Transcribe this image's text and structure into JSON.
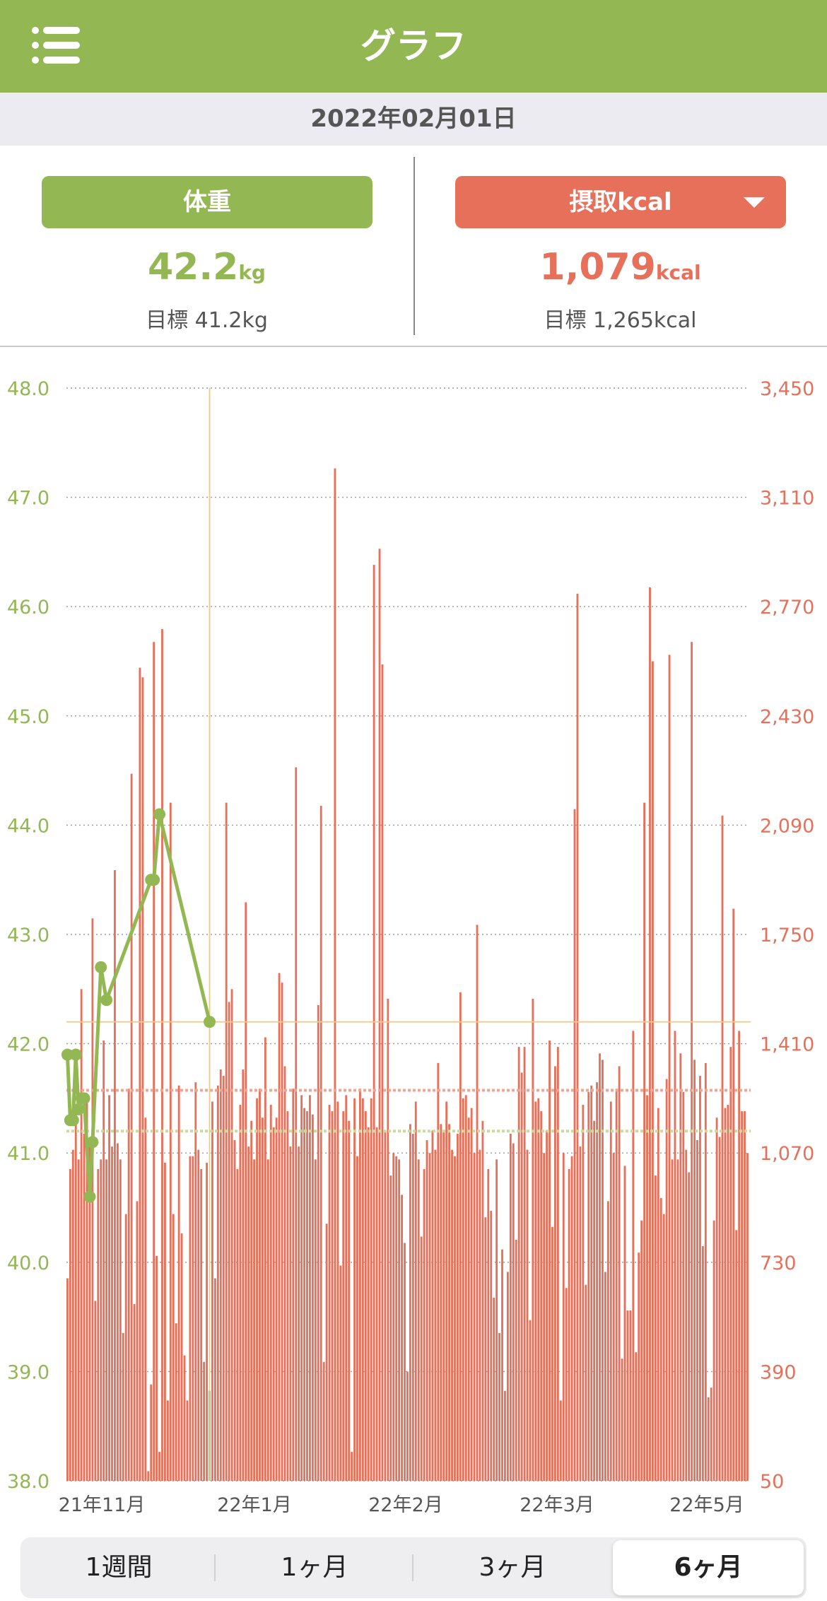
{
  "header": {
    "title": "グラフ",
    "menu_icon": "list-menu-icon"
  },
  "date_label": "2022年02月01日",
  "weight_panel": {
    "button_label": "体重",
    "value": "42.2",
    "unit": "kg",
    "target": "目標 41.2kg",
    "color": "#93b752"
  },
  "intake_panel": {
    "button_label": "摂取kcal",
    "value": "1,079",
    "unit": "kcal",
    "target": "目標 1,265kcal",
    "color": "#e6705a",
    "dropdown_icon": "triangle-down-icon"
  },
  "periods": {
    "items": [
      "1週間",
      "1ヶ月",
      "3ヶ月",
      "6ヶ月"
    ],
    "selected": "6ヶ月"
  },
  "chart_data": {
    "type": "bar+line",
    "left_axis": {
      "ticks": [
        "38.0",
        "39.0",
        "40.0",
        "41.0",
        "42.0",
        "43.0",
        "44.0",
        "45.0",
        "46.0",
        "47.0",
        "48.0"
      ],
      "range": [
        38,
        48
      ],
      "color": "#93b752"
    },
    "right_axis": {
      "ticks": [
        "50",
        "390",
        "730",
        "1,070",
        "1,410",
        "1,750",
        "2,090",
        "2,430",
        "2,770",
        "3,110",
        "3,450"
      ],
      "range": [
        50,
        3450
      ],
      "color": "#e6705a"
    },
    "x_tick_labels": [
      "21年11月",
      "22年1月",
      "22年2月",
      "22年3月",
      "22年5月"
    ],
    "weight_target": 41.2,
    "kcal_target": 1265,
    "selected_date": "2022年02月01日",
    "selected_weight": 42.2,
    "kcal_series": {
      "color": "#e6705a",
      "values": [
        680,
        1020,
        1080,
        1200,
        1050,
        1580,
        1130,
        1250,
        1090,
        1800,
        610,
        1020,
        1050,
        1420,
        1050,
        1250,
        1090,
        1950,
        1100,
        1050,
        510,
        880,
        1270,
        2250,
        600,
        920,
        2580,
        2550,
        1180,
        80,
        350,
        2660,
        750,
        140,
        2700,
        1040,
        300,
        2160,
        880,
        540,
        1280,
        820,
        440,
        300,
        1060,
        1060,
        1290,
        1080,
        1020,
        420,
        1040,
        330,
        1230,
        680,
        1280,
        1330,
        1310,
        2160,
        1540,
        1580,
        1110,
        1020,
        1220,
        1330,
        1850,
        1090,
        1170,
        1050,
        1240,
        1270,
        1180,
        1430,
        1050,
        1220,
        1150,
        1180,
        1630,
        1600,
        1340,
        1200,
        1090,
        1270,
        2270,
        1090,
        1250,
        1210,
        1200,
        1250,
        1190,
        1050,
        1530,
        2150,
        420,
        850,
        1220,
        1200,
        3200,
        1230,
        720,
        1200,
        1250,
        1170,
        140,
        1240,
        1060,
        1270,
        1240,
        1200,
        1150,
        1240,
        2900,
        1150,
        2950,
        2590,
        1140,
        1550,
        1000,
        1070,
        1060,
        1050,
        940,
        790,
        390,
        1160,
        1130,
        1230,
        1050,
        810,
        1020,
        1110,
        1070,
        1140,
        1080,
        1350,
        1160,
        1140,
        1230,
        1160,
        1080,
        1060,
        1130,
        1570,
        1240,
        1250,
        1180,
        1210,
        1070,
        1780,
        1080,
        1170,
        870,
        1020,
        890,
        620,
        1050,
        510,
        770,
        330,
        700,
        1130,
        1100,
        800,
        1400,
        1320,
        1400,
        1080,
        550,
        1550,
        1230,
        1240,
        1200,
        1070,
        1140,
        1420,
        840,
        1340,
        1400,
        300,
        1070,
        650,
        1020,
        1060,
        2140,
        2810,
        1090,
        1220,
        660,
        1260,
        1280,
        1170,
        1290,
        1380,
        1360,
        700,
        920,
        1230,
        1070,
        1270,
        1340,
        430,
        1030,
        580,
        580,
        1450,
        450,
        760,
        860,
        2160,
        1250,
        2830,
        2600,
        1000,
        1210,
        930,
        880,
        1300,
        2620,
        1050,
        1450,
        1050,
        1380,
        1260,
        1080,
        1010,
        2660,
        1360,
        1110,
        1310,
        780,
        1350,
        310,
        340,
        860,
        1180,
        1120,
        2120,
        1210,
        1220,
        1400,
        1830,
        830,
        1450,
        1200,
        1200,
        1070
      ]
    },
    "weight_series": {
      "color": "#93b752",
      "points": [
        [
          0,
          41.9
        ],
        [
          1,
          41.3
        ],
        [
          2,
          41.3
        ],
        [
          3,
          41.9
        ],
        [
          4,
          41.4
        ],
        [
          5,
          41.5
        ],
        [
          6,
          41.5
        ],
        [
          8,
          40.6
        ],
        [
          9,
          41.1
        ],
        [
          12,
          42.7
        ],
        [
          14,
          42.4
        ],
        [
          30,
          43.5
        ],
        [
          31,
          43.5
        ],
        [
          33,
          44.1
        ],
        [
          51,
          42.2
        ]
      ]
    }
  }
}
